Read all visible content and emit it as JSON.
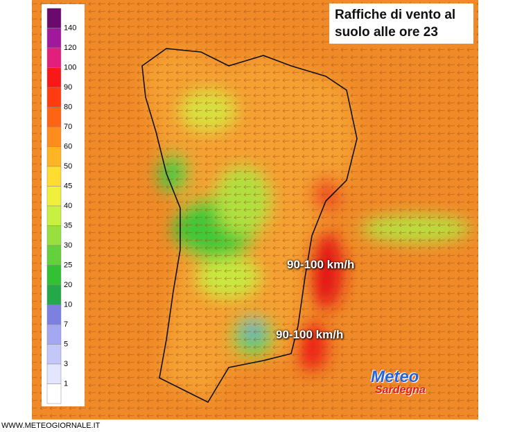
{
  "title": {
    "line1": "Raffiche di vento al",
    "line2": "suolo alle ore 23"
  },
  "legend": {
    "items": [
      {
        "label": 140,
        "color": "#6a0a6e"
      },
      {
        "label": 120,
        "color": "#a0189c"
      },
      {
        "label": 100,
        "color": "#e0207c"
      },
      {
        "label": 90,
        "color": "#f81818"
      },
      {
        "label": 80,
        "color": "#ff3c10"
      },
      {
        "label": 70,
        "color": "#ff6414"
      },
      {
        "label": 60,
        "color": "#ff8c1c"
      },
      {
        "label": 50,
        "color": "#ffb424"
      },
      {
        "label": 45,
        "color": "#ffdc30"
      },
      {
        "label": 40,
        "color": "#f0f03c"
      },
      {
        "label": 35,
        "color": "#c8f040"
      },
      {
        "label": 30,
        "color": "#98e040"
      },
      {
        "label": 25,
        "color": "#64d03c"
      },
      {
        "label": 20,
        "color": "#34c034"
      },
      {
        "label": 10,
        "color": "#24a848"
      },
      {
        "label": 7,
        "color": "#7c80e0"
      },
      {
        "label": 5,
        "color": "#a4a8f0"
      },
      {
        "label": 3,
        "color": "#c4c8f8"
      },
      {
        "label": 1,
        "color": "#e4e6ff"
      }
    ]
  },
  "annotations": [
    "90-100 km/h",
    "90-100 km/h"
  ],
  "logo": {
    "top": "Meteo",
    "bottom": "Sardegna"
  },
  "footer": "WWW.METEOGIORNALE.IT"
}
